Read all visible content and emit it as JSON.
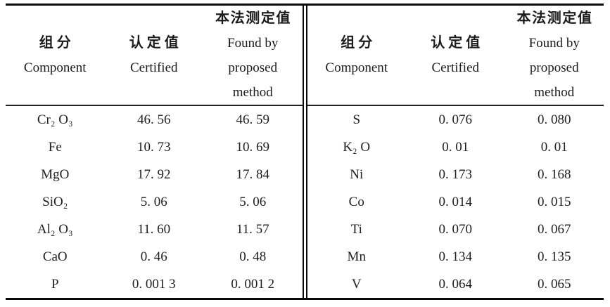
{
  "colors": {
    "rule": "#0a0a0a",
    "text": "#1f1f1f",
    "background": "#ffffff"
  },
  "table": {
    "header": {
      "component_zh": "组分",
      "component_en": "Component",
      "certified_zh": "认定值",
      "certified_en": "Certified",
      "found_zh": "本法测定值",
      "found_en1": "Found by",
      "found_en2": "proposed",
      "found_en3": "method"
    },
    "left_rows": [
      {
        "component": "Cr₂ O₃",
        "certified": "46. 56",
        "found": "46. 59"
      },
      {
        "component": "Fe",
        "certified": "10. 73",
        "found": "10. 69"
      },
      {
        "component": "MgO",
        "certified": "17. 92",
        "found": "17. 84"
      },
      {
        "component": "SiO₂",
        "certified": "5. 06",
        "found": "5. 06"
      },
      {
        "component": "Al₂ O₃",
        "certified": "11. 60",
        "found": "11. 57"
      },
      {
        "component": "CaO",
        "certified": "0. 46",
        "found": "0. 48"
      },
      {
        "component": "P",
        "certified": "0. 001 3",
        "found": "0. 001 2"
      }
    ],
    "right_rows": [
      {
        "component": "S",
        "certified": "0. 076",
        "found": "0. 080"
      },
      {
        "component": "K₂ O",
        "certified": "0. 01",
        "found": "0. 01"
      },
      {
        "component": "Ni",
        "certified": "0. 173",
        "found": "0. 168"
      },
      {
        "component": "Co",
        "certified": "0. 014",
        "found": "0. 015"
      },
      {
        "component": "Ti",
        "certified": "0. 070",
        "found": "0. 067"
      },
      {
        "component": "Mn",
        "certified": "0. 134",
        "found": "0. 135"
      },
      {
        "component": "V",
        "certified": "0. 064",
        "found": "0. 065"
      }
    ]
  }
}
